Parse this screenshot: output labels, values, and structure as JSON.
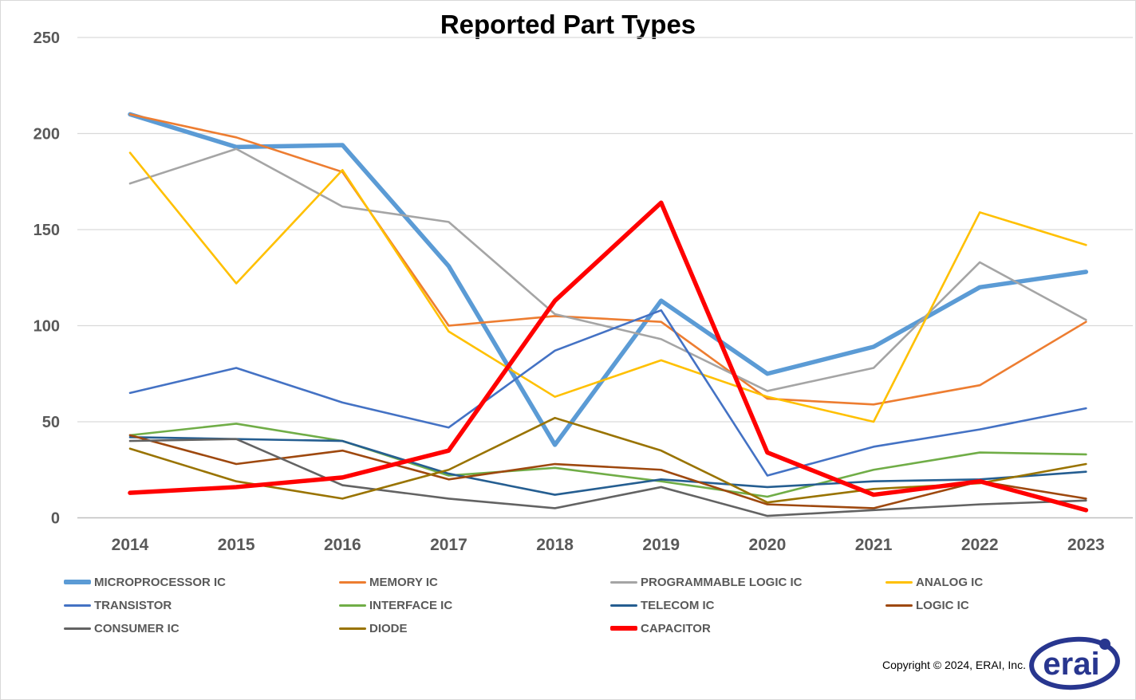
{
  "chart": {
    "title": "Reported Part Types"
  },
  "footer": {
    "copyright": "Copyright © 2024, ERAI, Inc.",
    "logo_text": "erai"
  },
  "chart_data": {
    "type": "line",
    "title": "Reported Part Types",
    "categories": [
      "2014",
      "2015",
      "2016",
      "2017",
      "2018",
      "2019",
      "2020",
      "2021",
      "2022",
      "2023"
    ],
    "y_ticks": [
      0,
      50,
      100,
      150,
      200,
      250
    ],
    "ylim": [
      0,
      250
    ],
    "grid": true,
    "legend_position": "bottom",
    "axis_text_color": "#595959",
    "grid_color": "#d9d9d9",
    "axis_line_color": "#bfbfbf",
    "series": [
      {
        "name": "MICROPROCESSOR IC",
        "color": "#5B9BD5",
        "thick": true,
        "values": [
          210,
          193,
          194,
          131,
          38,
          113,
          75,
          89,
          120,
          128
        ]
      },
      {
        "name": "MEMORY IC",
        "color": "#ED7D31",
        "thick": false,
        "values": [
          210,
          198,
          180,
          100,
          105,
          102,
          62,
          59,
          69,
          102
        ]
      },
      {
        "name": "PROGRAMMABLE LOGIC IC",
        "color": "#A5A5A5",
        "thick": false,
        "values": [
          174,
          192,
          162,
          154,
          106,
          93,
          66,
          78,
          133,
          103
        ]
      },
      {
        "name": "ANALOG IC",
        "color": "#FFC000",
        "thick": false,
        "values": [
          190,
          122,
          181,
          97,
          63,
          82,
          63,
          50,
          159,
          142
        ]
      },
      {
        "name": "TRANSISTOR",
        "color": "#4472C4",
        "thick": false,
        "values": [
          65,
          78,
          60,
          47,
          87,
          108,
          22,
          37,
          46,
          57
        ]
      },
      {
        "name": "INTERFACE IC",
        "color": "#70AD47",
        "thick": false,
        "values": [
          43,
          49,
          40,
          22,
          26,
          19,
          11,
          25,
          34,
          33
        ]
      },
      {
        "name": "TELECOM IC",
        "color": "#255E91",
        "thick": false,
        "values": [
          42,
          41,
          40,
          23,
          12,
          20,
          16,
          19,
          20,
          24
        ]
      },
      {
        "name": "LOGIC IC",
        "color": "#9E480E",
        "thick": false,
        "values": [
          43,
          28,
          35,
          20,
          28,
          25,
          7,
          5,
          19,
          10
        ]
      },
      {
        "name": "CONSUMER IC",
        "color": "#636363",
        "thick": false,
        "values": [
          40,
          41,
          17,
          10,
          5,
          16,
          1,
          4,
          7,
          9
        ]
      },
      {
        "name": "DIODE",
        "color": "#997300",
        "thick": false,
        "values": [
          36,
          19,
          10,
          25,
          52,
          35,
          8,
          15,
          18,
          28
        ]
      },
      {
        "name": "CAPACITOR",
        "color": "#FF0000",
        "thick": true,
        "values": [
          13,
          16,
          21,
          35,
          113,
          164,
          34,
          12,
          19,
          4
        ]
      }
    ]
  },
  "layout_hints": {
    "legend_columns": 4
  }
}
